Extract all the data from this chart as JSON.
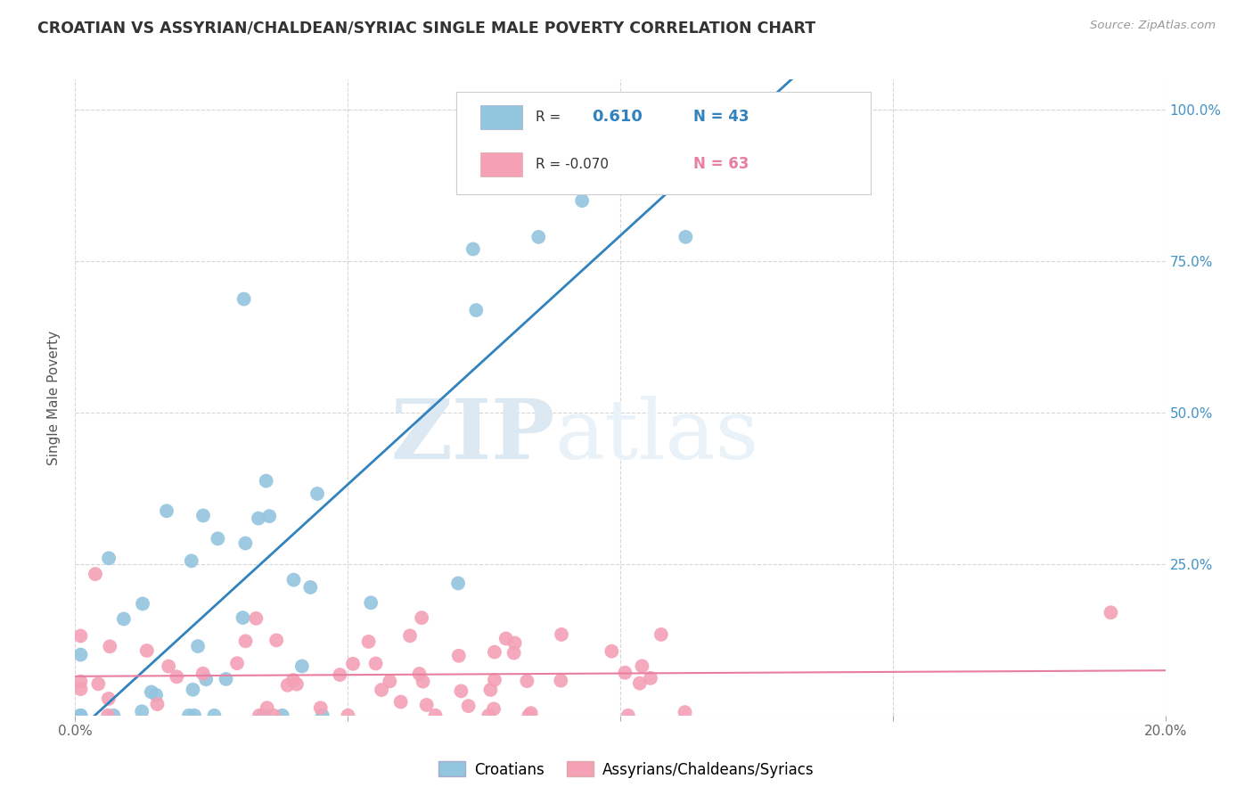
{
  "title": "CROATIAN VS ASSYRIAN/CHALDEAN/SYRIAC SINGLE MALE POVERTY CORRELATION CHART",
  "source": "Source: ZipAtlas.com",
  "ylabel": "Single Male Poverty",
  "xlim": [
    0.0,
    0.2
  ],
  "ylim": [
    0.0,
    1.05
  ],
  "x_ticks": [
    0.0,
    0.05,
    0.1,
    0.15,
    0.2
  ],
  "y_ticks": [
    0.0,
    0.25,
    0.5,
    0.75,
    1.0
  ],
  "y_tick_labels_right": [
    "",
    "25.0%",
    "50.0%",
    "75.0%",
    "100.0%"
  ],
  "croatian_R": 0.61,
  "croatian_N": 43,
  "assyrian_R": -0.07,
  "assyrian_N": 63,
  "croatian_color": "#92c5de",
  "assyrian_color": "#f4a0b5",
  "croatian_line_color": "#3182bd",
  "assyrian_line_color": "#e87fa0",
  "watermark_zip": "ZIP",
  "watermark_atlas": "atlas",
  "legend_label_croatian": "Croatians",
  "legend_label_assyrian": "Assyrians/Chaldeans/Syriacs",
  "background_color": "#ffffff",
  "grid_color": "#cccccc",
  "title_color": "#333333",
  "right_tick_color": "#4292c6"
}
